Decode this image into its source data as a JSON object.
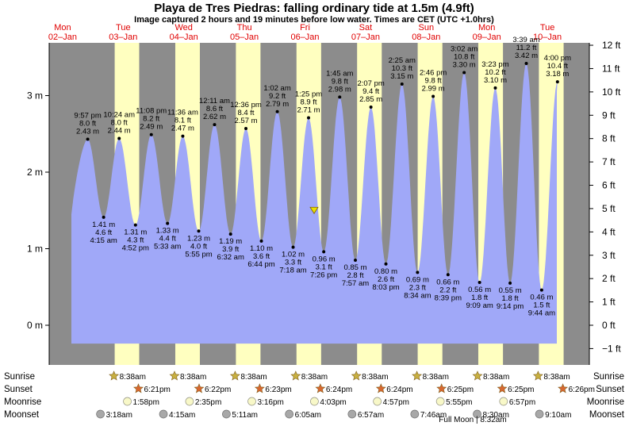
{
  "title": "Playa de Tres Piedras: falling  ordinary tide at 1.5m (4.9ft)",
  "subtitle": "Image captured 2 hours and 19 minutes before low water. Times are CET (UTC +1.0hrs)",
  "days": [
    {
      "dow": "Mon",
      "date": "02–Jan"
    },
    {
      "dow": "Tue",
      "date": "03–Jan"
    },
    {
      "dow": "Wed",
      "date": "04–Jan"
    },
    {
      "dow": "Thu",
      "date": "05–Jan"
    },
    {
      "dow": "Fri",
      "date": "06–Jan"
    },
    {
      "dow": "Sat",
      "date": "07–Jan"
    },
    {
      "dow": "Sun",
      "date": "08–Jan"
    },
    {
      "dow": "Mon",
      "date": "09–Jan"
    },
    {
      "dow": "Tue",
      "date": "10–Jan"
    }
  ],
  "row_labels": {
    "sunrise": "Sunrise",
    "sunset": "Sunset",
    "moonrise": "Moonrise",
    "moonset": "Moonset"
  },
  "astro": {
    "sunrise": [
      "8:38am",
      "8:38am",
      "8:38am",
      "8:38am",
      "8:38am",
      "8:38am",
      "8:38am",
      "8:38am"
    ],
    "sunset": [
      "6:21pm",
      "6:22pm",
      "6:23pm",
      "6:24pm",
      "6:24pm",
      "6:25pm",
      "6:25pm",
      "6:26pm"
    ],
    "moonrise": [
      "1:58pm",
      "2:35pm",
      "3:16pm",
      "4:03pm",
      "4:57pm",
      "5:55pm",
      "6:57pm"
    ],
    "moonset": [
      "3:18am",
      "4:15am",
      "5:11am",
      "6:05am",
      "6:57am",
      "7:46am",
      "8:30am",
      "9:10am"
    ],
    "full_moon": "Full Moon | 8:32am"
  },
  "colors": {
    "night": "#8c8c8c",
    "day": "#ffffc0",
    "water": "#a0a8f8",
    "day_label": "#e00000",
    "sun_star": "#c8b040",
    "sunset_star": "#d86830",
    "moon": "#f8f8c8"
  },
  "chart_data": {
    "type": "area",
    "title": "Playa de Tres Piedras: falling  ordinary tide at 1.5m (4.9ft)",
    "y_left": {
      "unit": "m",
      "ticks": [
        "0 m",
        "1 m",
        "2 m",
        "3 m"
      ],
      "ylim": [
        -0.24,
        3.6
      ]
    },
    "y_right": {
      "unit": "ft",
      "ticks": [
        "−1 ft",
        "0 ft",
        "1 ft",
        "2 ft",
        "3 ft",
        "4 ft",
        "5 ft",
        "6 ft",
        "7 ft",
        "8 ft",
        "9 ft",
        "10 ft",
        "11 ft",
        "12 ft"
      ]
    },
    "current_level_m": 1.5,
    "tides": [
      {
        "type": "high",
        "time": "9:57 pm",
        "ft": "8.0 ft",
        "m": 2.43,
        "label": "2.43 m"
      },
      {
        "type": "low",
        "time": "4:15 am",
        "ft": "4.6 ft",
        "m": 1.41,
        "label": "1.41 m"
      },
      {
        "type": "high",
        "time": "10:24 am",
        "ft": "8.0 ft",
        "m": 2.44,
        "label": "2.44 m"
      },
      {
        "type": "low",
        "time": "4:52 pm",
        "ft": "4.3 ft",
        "m": 1.31,
        "label": "1.31 m"
      },
      {
        "type": "high",
        "time": "11:08 pm",
        "ft": "8.2 ft",
        "m": 2.49,
        "label": "2.49 m"
      },
      {
        "type": "low",
        "time": "5:33 am",
        "ft": "4.4 ft",
        "m": 1.33,
        "label": "1.33 m"
      },
      {
        "type": "high",
        "time": "11:36 am",
        "ft": "8.1 ft",
        "m": 2.47,
        "label": "2.47 m"
      },
      {
        "type": "low",
        "time": "5:55 pm",
        "ft": "4.0 ft",
        "m": 1.23,
        "label": "1.23 m"
      },
      {
        "type": "high",
        "time": "12:11 am",
        "ft": "8.6 ft",
        "m": 2.62,
        "label": "2.62 m"
      },
      {
        "type": "low",
        "time": "6:32 am",
        "ft": "3.9 ft",
        "m": 1.19,
        "label": "1.19 m"
      },
      {
        "type": "high",
        "time": "12:36 pm",
        "ft": "8.4 ft",
        "m": 2.57,
        "label": "2.57 m"
      },
      {
        "type": "low",
        "time": "6:44 pm",
        "ft": "3.6 ft",
        "m": 1.1,
        "label": "1.10 m"
      },
      {
        "type": "high",
        "time": "1:02 am",
        "ft": "9.2 ft",
        "m": 2.79,
        "label": "2.79 m"
      },
      {
        "type": "low",
        "time": "7:18 am",
        "ft": "3.3 ft",
        "m": 1.02,
        "label": "1.02 m"
      },
      {
        "type": "high",
        "time": "1:25 pm",
        "ft": "8.9 ft",
        "m": 2.71,
        "label": "2.71 m"
      },
      {
        "type": "low",
        "time": "7:26 pm",
        "ft": "3.1 ft",
        "m": 0.96,
        "label": "0.96 m"
      },
      {
        "type": "high",
        "time": "1:45 am",
        "ft": "9.8 ft",
        "m": 2.98,
        "label": "2.98 m"
      },
      {
        "type": "low",
        "time": "7:57 am",
        "ft": "2.8 ft",
        "m": 0.85,
        "label": "0.85 m"
      },
      {
        "type": "high",
        "time": "2:07 pm",
        "ft": "9.4 ft",
        "m": 2.85,
        "label": "2.85 m"
      },
      {
        "type": "low",
        "time": "8:03 pm",
        "ft": "2.6 ft",
        "m": 0.8,
        "label": "0.80 m"
      },
      {
        "type": "high",
        "time": "2:25 am",
        "ft": "10.3 ft",
        "m": 3.15,
        "label": "3.15 m"
      },
      {
        "type": "low",
        "time": "8:34 am",
        "ft": "2.3 ft",
        "m": 0.69,
        "label": "0.69 m"
      },
      {
        "type": "high",
        "time": "2:46 pm",
        "ft": "9.8 ft",
        "m": 2.99,
        "label": "2.99 m"
      },
      {
        "type": "low",
        "time": "8:39 pm",
        "ft": "2.2 ft",
        "m": 0.66,
        "label": "0.66 m"
      },
      {
        "type": "high",
        "time": "3:02 am",
        "ft": "10.8 ft",
        "m": 3.3,
        "label": "3.30 m"
      },
      {
        "type": "low",
        "time": "9:09 am",
        "ft": "1.8 ft",
        "m": 0.56,
        "label": "0.56 m"
      },
      {
        "type": "high",
        "time": "3:23 pm",
        "ft": "10.2 ft",
        "m": 3.1,
        "label": "3.10 m"
      },
      {
        "type": "low",
        "time": "9:14 pm",
        "ft": "1.8 ft",
        "m": 0.55,
        "label": "0.55 m"
      },
      {
        "type": "high",
        "time": "3:39 am",
        "ft": "11.2 ft",
        "m": 3.42,
        "label": "3.42 m"
      },
      {
        "type": "low",
        "time": "9:44 am",
        "ft": "1.5 ft",
        "m": 0.46,
        "label": "0.46 m"
      },
      {
        "type": "high",
        "time": "4:00 pm",
        "ft": "10.4 ft",
        "m": 3.18,
        "label": "3.18 m"
      }
    ]
  }
}
